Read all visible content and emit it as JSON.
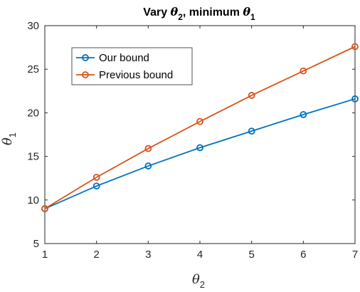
{
  "chart_data": {
    "type": "line",
    "title": {
      "prefix": "Vary ",
      "var1": "θ",
      "var1_sub": "2",
      "middle": ", minimum ",
      "var2": "θ",
      "var2_sub": "1"
    },
    "xlabel": {
      "symbol": "θ",
      "sub": "2"
    },
    "ylabel": {
      "symbol": "θ",
      "sub": "1"
    },
    "x": [
      1,
      2,
      3,
      4,
      5,
      6,
      7
    ],
    "xlim": [
      1,
      7
    ],
    "ylim": [
      5,
      30
    ],
    "xticks": [
      "1",
      "2",
      "3",
      "4",
      "5",
      "6",
      "7"
    ],
    "yticks": [
      "5",
      "10",
      "15",
      "20",
      "25",
      "30"
    ],
    "grid": false,
    "legend_position": "top-left",
    "series": [
      {
        "name": "Our bound",
        "color": "#0072BD",
        "values": [
          9,
          11.6,
          13.9,
          16.0,
          17.9,
          19.8,
          21.6
        ]
      },
      {
        "name": "Previous bound",
        "color": "#D95319",
        "values": [
          9,
          12.6,
          15.9,
          19.0,
          22.0,
          24.8,
          27.6
        ]
      }
    ]
  }
}
